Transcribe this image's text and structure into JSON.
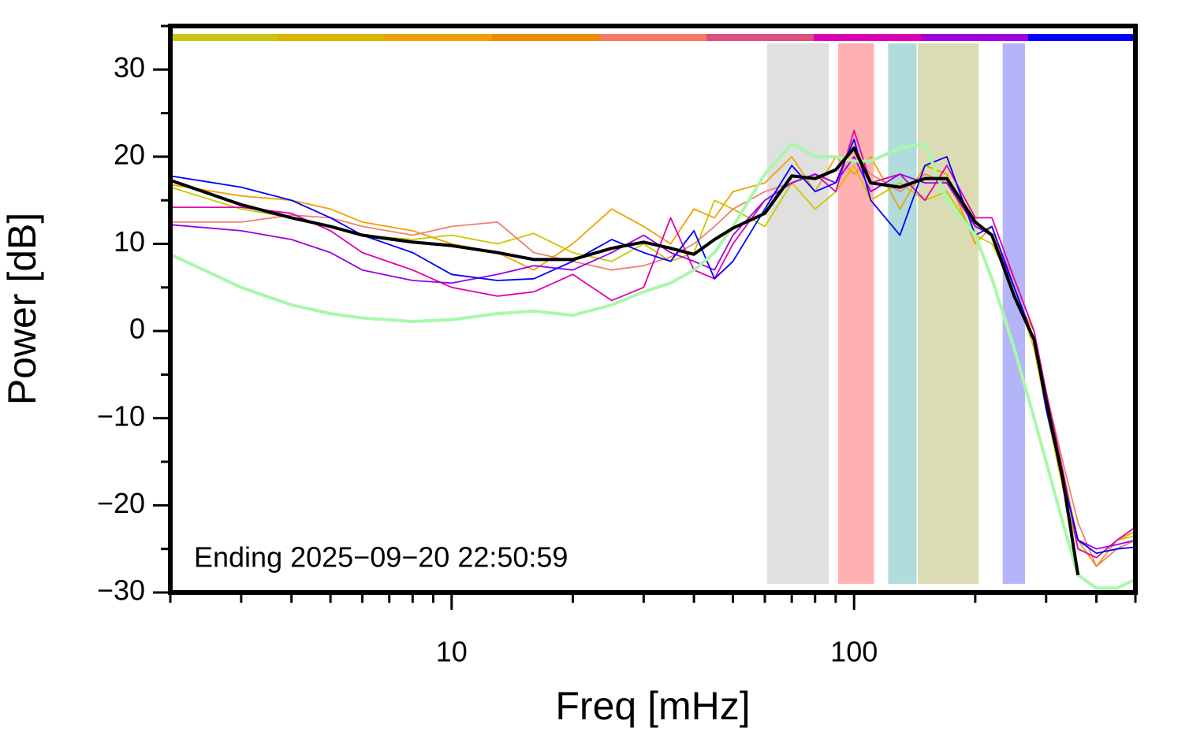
{
  "chart_data": {
    "type": "line",
    "xlabel": "Freq [mHz]",
    "ylabel": "Power [dB]",
    "annotation": "Ending 2025−09−20 22:50:59",
    "xscale": "log",
    "xlim": [
      2,
      500
    ],
    "ylim": [
      -30,
      35
    ],
    "xticks": [
      10,
      100
    ],
    "xminor_ticks": [
      2,
      3,
      4,
      5,
      6,
      7,
      8,
      9,
      20,
      30,
      40,
      50,
      60,
      70,
      80,
      90,
      200,
      300,
      400,
      500
    ],
    "yticks": [
      30,
      20,
      10,
      0,
      {
        "value": -10,
        "label": "−10"
      },
      {
        "value": -20,
        "label": "−20"
      },
      {
        "value": -30,
        "label": "−30"
      }
    ],
    "yminor_ticks": [
      35,
      25,
      15,
      5,
      -5,
      -15,
      -25
    ],
    "color_bar": [
      "#c8c810",
      "#dcb400",
      "#f0a000",
      "#f08c00",
      "#f87860",
      "#dc5080",
      "#dc00b4",
      "#a000dc",
      "#0000ff"
    ],
    "band_ylim": [
      -29,
      33
    ],
    "bands": [
      {
        "x": [
          60.8,
          86.5
        ],
        "color": "#e0e0e0"
      },
      {
        "x": [
          91.3,
          112
        ],
        "color": "#ffb0b0"
      },
      {
        "x": [
          121.5,
          143
        ],
        "color": "#b0dcdc"
      },
      {
        "x": [
          144,
          204
        ],
        "color": "#dcdcb4"
      },
      {
        "x": [
          234,
          266
        ],
        "color": "#b4b4f8"
      }
    ],
    "x": [
      2,
      3,
      4,
      5,
      6,
      8,
      10,
      13,
      16,
      20,
      25,
      30,
      35,
      40,
      45,
      50,
      60,
      70,
      80,
      90,
      100,
      110,
      130,
      150,
      170,
      200,
      220,
      250,
      280,
      300,
      330,
      360,
      400,
      450,
      500
    ],
    "series": [
      {
        "color": "#c8c800",
        "style": "thin",
        "values": [
          16.5,
          14,
          13,
          12,
          11,
          10.5,
          11,
          10,
          11.2,
          9,
          8,
          10,
          8,
          9,
          15,
          14,
          12,
          17,
          14,
          16,
          19,
          15,
          17,
          15,
          16,
          11,
          10,
          5,
          -2,
          -9,
          -18,
          -25,
          -26,
          -24,
          -23.5
        ]
      },
      {
        "color": "#f0a000",
        "style": "thin",
        "values": [
          16.8,
          15.5,
          15,
          14,
          12.5,
          11.5,
          10,
          9,
          7,
          10,
          14,
          12,
          10,
          14,
          13,
          16,
          17,
          20,
          16,
          20,
          18,
          20,
          14,
          19,
          18,
          10,
          12,
          4,
          0,
          -8,
          -16,
          -24,
          -27,
          -24,
          -23
        ]
      },
      {
        "color": "#f08070",
        "style": "thin",
        "values": [
          12.5,
          12.5,
          13.3,
          13,
          12,
          11,
          12,
          12.5,
          9,
          8,
          7,
          7.5,
          8.5,
          10,
          12,
          14,
          16,
          17,
          18,
          17,
          20,
          18,
          16,
          18,
          17,
          12,
          11,
          6,
          0,
          -7,
          -15,
          -22,
          -27,
          -25,
          -24
        ]
      },
      {
        "color": "#e000b0",
        "style": "thin",
        "values": [
          14.2,
          14.2,
          13.5,
          11.5,
          9,
          7,
          5,
          4,
          4.5,
          6.5,
          3.5,
          5,
          13,
          7,
          6,
          10,
          15,
          17,
          18,
          16,
          23,
          17,
          18,
          15,
          19,
          13,
          13,
          6,
          0,
          -7,
          -16,
          -25,
          -26,
          -24,
          -22.5
        ]
      },
      {
        "color": "#a000e0",
        "style": "thin",
        "values": [
          12.2,
          11.5,
          10.5,
          9,
          7,
          5.8,
          5.5,
          6.5,
          7.5,
          7,
          9,
          11,
          9,
          8,
          7,
          11,
          15,
          17,
          18,
          17,
          20,
          16,
          18,
          17,
          17,
          12,
          11,
          5,
          -1,
          -8,
          -17,
          -24,
          -25,
          -24.5,
          -24
        ]
      },
      {
        "color": "#0000ff",
        "style": "thin",
        "values": [
          17.8,
          16.5,
          15,
          13,
          11,
          9,
          6.5,
          5.8,
          6,
          8,
          10.5,
          9,
          8,
          11.5,
          6,
          8,
          14,
          19,
          16,
          17,
          22,
          15,
          11,
          19,
          20,
          11,
          12,
          5,
          -1,
          -9,
          -17,
          -24,
          -25.5,
          -25,
          -24.8
        ]
      },
      {
        "color": "#a8f8a8",
        "style": "thick",
        "values": [
          8.8,
          5,
          3,
          2,
          1.5,
          1.1,
          1.3,
          2,
          2.3,
          1.8,
          3,
          4.5,
          5.5,
          7,
          9,
          12,
          18,
          21.5,
          20,
          20,
          19.5,
          19.5,
          21,
          21.5,
          15,
          11,
          6,
          -2,
          -10,
          -15,
          -22,
          -28,
          -29.5,
          -29.5,
          -28.5
        ]
      },
      {
        "color": "#000000",
        "style": "thick",
        "values": [
          17.3,
          14.5,
          13,
          12,
          11,
          10.2,
          9.8,
          9,
          8.2,
          8.2,
          9.5,
          10.2,
          9.5,
          8.8,
          10.5,
          11.8,
          13.5,
          17.8,
          17.5,
          18.5,
          21,
          17,
          16.5,
          17.5,
          17.5,
          12.5,
          11,
          4,
          -1,
          -8,
          -17,
          -28,
          null,
          null,
          null
        ]
      }
    ]
  }
}
